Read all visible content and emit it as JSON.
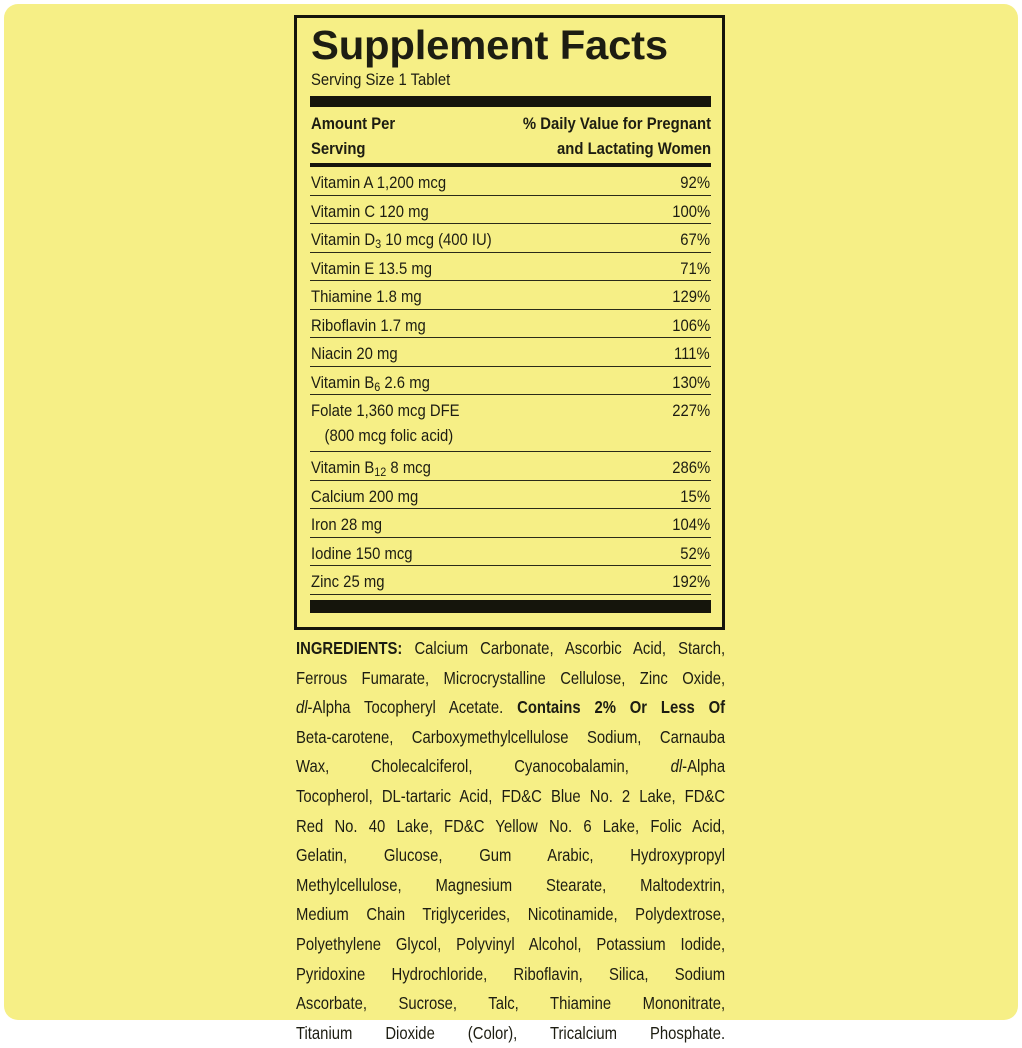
{
  "colors": {
    "background": "#f6ef86",
    "ink": "#15150c"
  },
  "facts": {
    "title": "Supplement Facts",
    "serving_size": "Serving Size 1 Tablet",
    "header_left": [
      "Amount Per",
      "Serving"
    ],
    "header_right": [
      "% Daily Value for Pregnant",
      "and Lactating Women"
    ],
    "rows": [
      {
        "name": "Vitamin A 1,200 mcg",
        "pct": "92%"
      },
      {
        "name": "Vitamin C 120 mg",
        "pct": "100%"
      },
      {
        "name": "Vitamin D",
        "sub": "3",
        "rest": " 10 mcg (400 IU)",
        "pct": "67%"
      },
      {
        "name": "Vitamin E 13.5 mg",
        "pct": "71%"
      },
      {
        "name": "Thiamine 1.8 mg",
        "pct": "129%"
      },
      {
        "name": "Riboflavin 1.7 mg",
        "pct": "106%"
      },
      {
        "name": "Niacin 20 mg",
        "pct": "111%"
      },
      {
        "name": "Vitamin B",
        "sub": "6",
        "rest": " 2.6 mg",
        "pct": "130%"
      },
      {
        "name": "Folate 1,360 mcg DFE",
        "note": "(800 mcg folic acid)",
        "pct": "227%"
      },
      {
        "name": "Vitamin B",
        "sub": "12",
        "rest": " 8 mcg",
        "pct": "286%"
      },
      {
        "name": "Calcium 200 mg",
        "pct": "15%"
      },
      {
        "name": "Iron 28 mg",
        "pct": "104%"
      },
      {
        "name": "Iodine 150 mcg",
        "pct": "52%"
      },
      {
        "name": "Zinc 25 mg",
        "pct": "192%"
      }
    ]
  },
  "ingredients": {
    "lines": [
      [
        {
          "t": "INGREDIENTS:",
          "s": "b"
        },
        {
          "t": " Calcium Carbonate, Ascorbic Acid, Starch,"
        }
      ],
      [
        {
          "t": "Ferrous Fumarate, Microcrystalline Cellulose, Zinc Oxide,"
        }
      ],
      [
        {
          "t": "dl",
          "s": "i"
        },
        {
          "t": "-Alpha Tocopheryl Acetate. "
        },
        {
          "t": "Contains 2% Or Less Of",
          "s": "b"
        }
      ],
      [
        {
          "t": "Beta-carotene, Carboxymethylcellulose Sodium, Carnauba"
        }
      ],
      [
        {
          "t": "Wax, Cholecalciferol, Cyanocobalamin, "
        },
        {
          "t": "dl",
          "s": "i"
        },
        {
          "t": "-Alpha"
        }
      ],
      [
        {
          "t": "Tocopherol, DL-tartaric Acid, FD&C Blue No. 2 Lake, FD&C"
        }
      ],
      [
        {
          "t": "Red No. 40 Lake, FD&C Yellow No. 6 Lake, Folic Acid,"
        }
      ],
      [
        {
          "t": "Gelatin, Glucose, Gum Arabic, Hydroxypropyl"
        }
      ],
      [
        {
          "t": "Methylcellulose, Magnesium Stearate, Maltodextrin,"
        }
      ],
      [
        {
          "t": "Medium Chain Triglycerides, Nicotinamide, Polydextrose,"
        }
      ],
      [
        {
          "t": "Polyethylene Glycol, Polyvinyl Alcohol, Potassium Iodide,"
        }
      ],
      [
        {
          "t": "Pyridoxine Hydrochloride, Riboflavin, Silica, Sodium"
        }
      ],
      [
        {
          "t": "Ascorbate, Sucrose, Talc, Thiamine Mononitrate,"
        }
      ],
      [
        {
          "t": "Titanium Dioxide (Color), Tricalcium Phosphate."
        }
      ]
    ]
  }
}
